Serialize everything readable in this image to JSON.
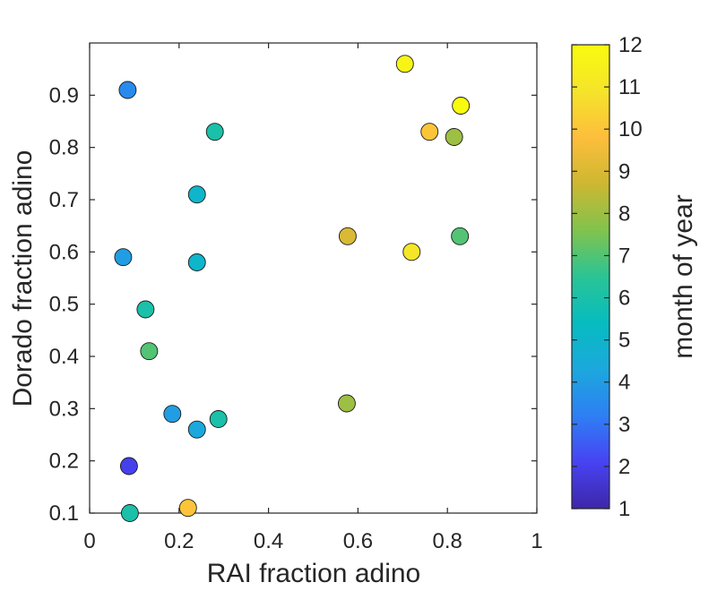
{
  "chart_data": {
    "type": "scatter",
    "title": "",
    "xlabel": "RAI fraction adino",
    "ylabel": "Dorado fraction adino",
    "xlim": [
      0,
      1
    ],
    "ylim": [
      0.1,
      1.0
    ],
    "xticks": [
      0,
      0.2,
      0.4,
      0.6,
      0.8,
      1
    ],
    "xtick_labels": [
      "0",
      "0.2",
      "0.4",
      "0.6",
      "0.8",
      "1"
    ],
    "yticks": [
      0.1,
      0.2,
      0.3,
      0.4,
      0.5,
      0.6,
      0.7,
      0.8,
      0.9
    ],
    "ytick_labels": [
      "0.1",
      "0.2",
      "0.3",
      "0.4",
      "0.5",
      "0.6",
      "0.7",
      "0.8",
      "0.9"
    ],
    "grid": false,
    "box": true,
    "colorbar": {
      "label": "month of year",
      "range": [
        1,
        12
      ],
      "ticks": [
        1,
        2,
        3,
        4,
        5,
        6,
        7,
        8,
        9,
        10,
        11,
        12
      ],
      "tick_labels": [
        "1",
        "2",
        "3",
        "4",
        "5",
        "6",
        "7",
        "8",
        "9",
        "10",
        "11",
        "12"
      ],
      "colormap": "parula",
      "colormap_stops": [
        "#3e26a8",
        "#4743f3",
        "#2e7ff4",
        "#1ca8dd",
        "#06bcc0",
        "#2ac495",
        "#81c34d",
        "#cdb731",
        "#fdbe3c",
        "#f5e42a",
        "#f9fb0e"
      ]
    },
    "points": [
      {
        "x": 0.085,
        "y": 0.91,
        "month": 3.5
      },
      {
        "x": 0.28,
        "y": 0.83,
        "month": 6
      },
      {
        "x": 0.24,
        "y": 0.71,
        "month": 5
      },
      {
        "x": 0.075,
        "y": 0.59,
        "month": 4
      },
      {
        "x": 0.24,
        "y": 0.58,
        "month": 5
      },
      {
        "x": 0.125,
        "y": 0.49,
        "month": 6
      },
      {
        "x": 0.133,
        "y": 0.41,
        "month": 7
      },
      {
        "x": 0.185,
        "y": 0.29,
        "month": 4
      },
      {
        "x": 0.24,
        "y": 0.26,
        "month": 4.3
      },
      {
        "x": 0.288,
        "y": 0.28,
        "month": 6
      },
      {
        "x": 0.088,
        "y": 0.19,
        "month": 2
      },
      {
        "x": 0.09,
        "y": 0.1,
        "month": 6
      },
      {
        "x": 0.22,
        "y": 0.11,
        "month": 10
      },
      {
        "x": 0.575,
        "y": 0.31,
        "month": 8
      },
      {
        "x": 0.577,
        "y": 0.63,
        "month": 9
      },
      {
        "x": 0.705,
        "y": 0.96,
        "month": 11.7
      },
      {
        "x": 0.72,
        "y": 0.6,
        "month": 11
      },
      {
        "x": 0.76,
        "y": 0.83,
        "month": 10
      },
      {
        "x": 0.815,
        "y": 0.82,
        "month": 8
      },
      {
        "x": 0.828,
        "y": 0.63,
        "month": 7
      },
      {
        "x": 0.83,
        "y": 0.88,
        "month": 12
      }
    ]
  }
}
